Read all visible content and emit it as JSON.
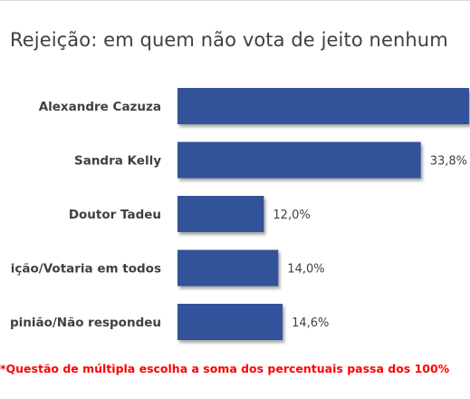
{
  "chart_data": {
    "type": "bar",
    "orientation": "horizontal",
    "title": "Rejeição: em quem não vota de jeito nenhum",
    "categories": [
      "Alexandre Cazuza",
      "Sandra Kelly",
      "Doutor Tadeu",
      "ição/Votaria em todos",
      "pinião/Não respondeu"
    ],
    "values": [
      40.5,
      33.8,
      12.0,
      14.0,
      14.6
    ],
    "labels": [
      "",
      "33,8%",
      "12,0%",
      "14,0%",
      "14,6%"
    ],
    "colors": {
      "bar": "#30539a",
      "label": "#404040",
      "category": "#404040"
    },
    "grid": false,
    "legend": "none"
  },
  "footnote": "*Questão de múltipla escolha a soma dos percentuais passa dos 100%"
}
